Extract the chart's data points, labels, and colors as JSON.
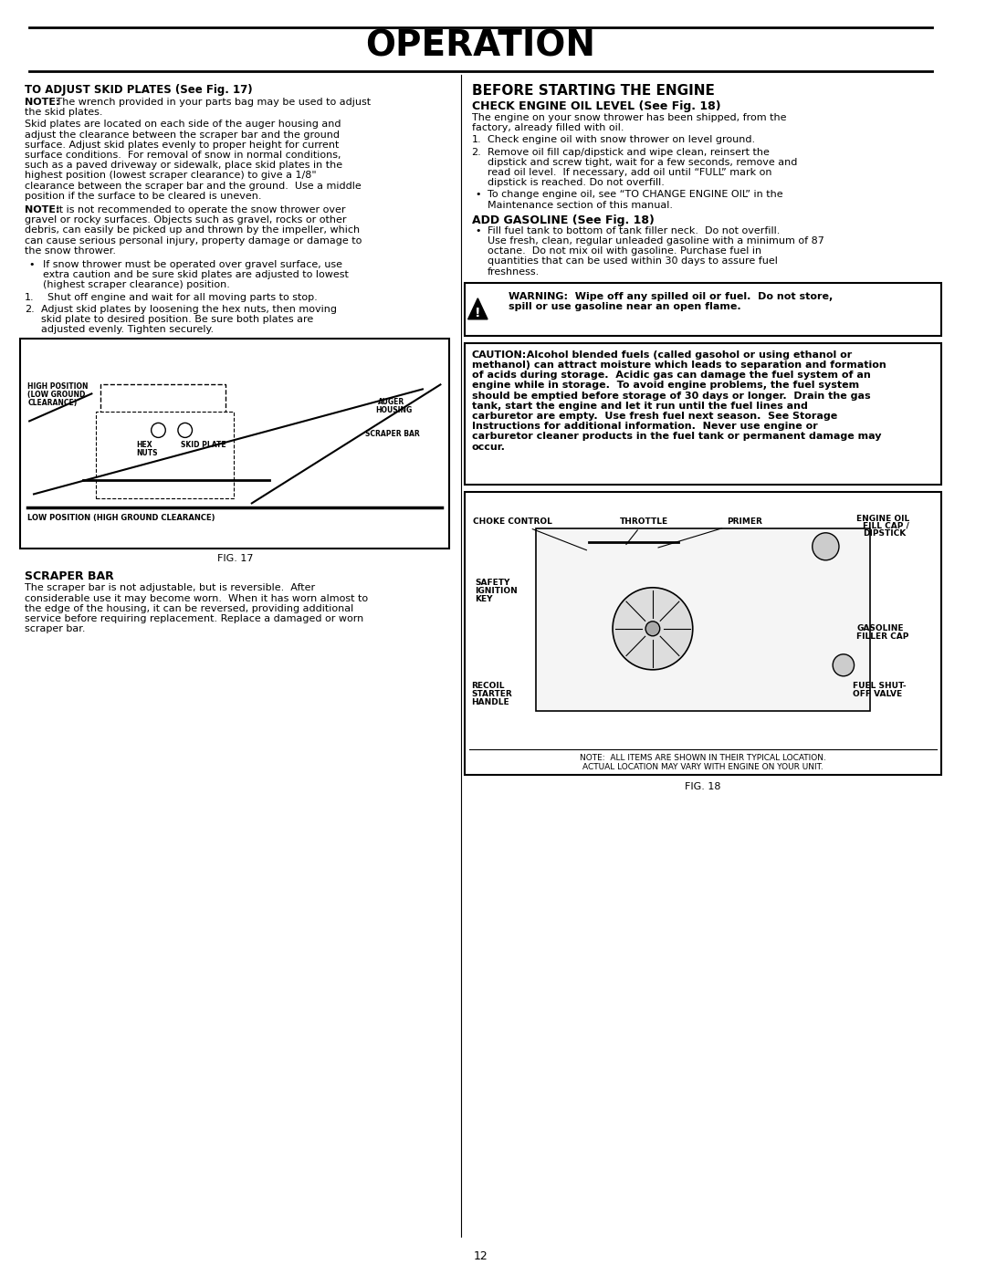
{
  "title": "OPERATION",
  "page_number": "12",
  "bg_color": "#ffffff",
  "text_color": "#000000",
  "left_col": {
    "section1_heading": "TO ADJUST SKID PLATES (See Fig. 17)",
    "note1_bold": "NOTE:",
    "note1_text": " The wrench provided in your parts bag may be used to adjust the skid plates.",
    "para1": "Skid plates are located on each side of the auger housing and adjust the clearance between the scraper bar and the ground surface. Adjust skid plates evenly to proper height for current surface conditions.  For removal of snow in normal conditions, such as a paved driveway or sidewalk, place skid plates in the highest position (lowest scraper clearance) to give a 1/8\" clearance between the scraper bar and the ground.  Use a middle position if the surface to be cleared is uneven.",
    "note2_bold": "NOTE:",
    "note2_text": " It is not recommended to operate the snow thrower over gravel or rocky surfaces. Objects such as gravel, rocks or other debris, can easily be picked up and thrown by the impeller, which can cause serious personal injury, property damage or damage to the snow thrower.",
    "bullet1": "If snow thrower must be operated over gravel surface, use extra caution and be sure skid plates are adjusted to lowest (highest scraper clearance) position.",
    "list1": "1.   Shut off engine and wait for all moving parts to stop.",
    "list2": "2.   Adjust skid plates by loosening the hex nuts, then moving skid plate to desired position. Be sure both plates are adjusted evenly. Tighten securely.",
    "fig17_caption": "FIG. 17",
    "section2_heading": "SCRAPER BAR",
    "scraper_bar_para": "The scraper bar is not adjustable, but is reversible.  After considerable use it may become worn.  When it has worn almost to the edge of the housing, it can be reversed, providing additional service before requiring replacement. Replace a damaged or worn scraper bar."
  },
  "right_col": {
    "section1_heading": "BEFORE STARTING THE ENGINE",
    "section2_heading": "CHECK ENGINE OIL LEVEL (See Fig. 18)",
    "oil_para": "The engine on your snow thrower has been shipped, from the factory, already filled with oil.",
    "oil_list1": "1.   Check engine oil with snow thrower on level ground.",
    "oil_list2": "2.   Remove oil fill cap/dipstick and wipe clean, reinsert the dipstick and screw tight, wait for a few seconds, remove and read oil level.  If necessary, add oil until “FULL” mark on dipstick is reached. Do not overfill.",
    "oil_bullet": "To change engine oil, see “TO CHANGE ENGINE OIL” in the Maintenance section of this manual.",
    "section3_heading": "ADD GASOLINE (See Fig. 18)",
    "gas_bullet": "Fill fuel tank to bottom of tank filler neck.  Do not overfill.  Use fresh, clean, regular unleaded gasoline with a minimum of 87 octane.  Do not mix oil with gasoline. Purchase fuel in quantities that can be used within 30 days to assure fuel freshness.",
    "warning_bold": "WARNING:  Wipe off any spilled oil or fuel.  Do not store, spill or use gasoline near an open flame.",
    "caution_bold": "CAUTION:",
    "caution_text": "  Alcohol blended fuels (called gasohol or using ethanol or methanol) can attract moisture which leads to separation and formation of acids during storage.  Acidic gas can damage the fuel system of an engine while in storage.  To avoid engine problems, the fuel system should be emptied before storage of 30 days or longer.  Drain the gas tank, start the engine and let it run until the fuel lines and carburetor are empty.  Use fresh fuel next season.  See Storage Instructions for additional information.  Never use engine or carburetor cleaner products in the fuel tank or permanent damage may occur.",
    "fig18_caption": "FIG. 18",
    "fig18_note": "NOTE:  ALL ITEMS ARE SHOWN IN THEIR TYPICAL LOCATION.\nACTUAL LOCATION MAY VARY WITH ENGINE ON YOUR UNIT."
  }
}
